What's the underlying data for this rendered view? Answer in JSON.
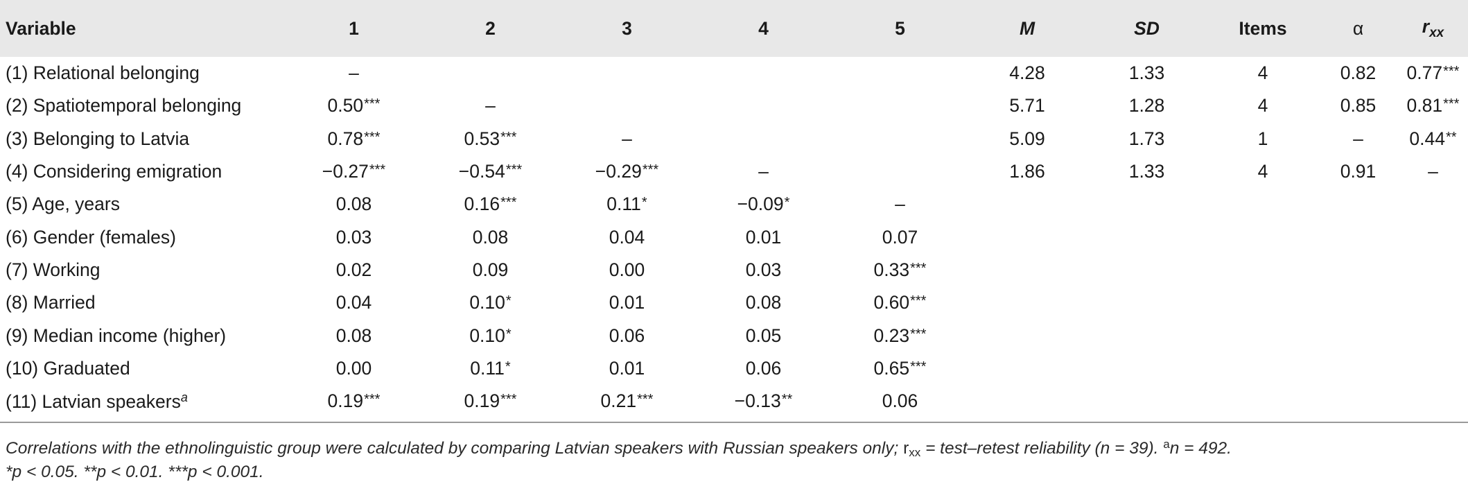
{
  "headers": {
    "variable": "Variable",
    "c1": "1",
    "c2": "2",
    "c3": "3",
    "c4": "4",
    "c5": "5",
    "m": "M",
    "sd": "SD",
    "items": "Items",
    "alpha": "α",
    "rxx_base": "r",
    "rxx_sub": "xx"
  },
  "rows": [
    {
      "label": "(1) Relational belonging",
      "sup": "",
      "c1": "–",
      "c1s": "",
      "c2": "",
      "c2s": "",
      "c3": "",
      "c3s": "",
      "c4": "",
      "c4s": "",
      "c5": "",
      "c5s": "",
      "m": "4.28",
      "sd": "1.33",
      "items": "4",
      "alpha": "0.82",
      "rxx": "0.77",
      "rxxs": "***"
    },
    {
      "label": "(2) Spatiotemporal belonging",
      "sup": "",
      "c1": "0.50",
      "c1s": "***",
      "c2": "–",
      "c2s": "",
      "c3": "",
      "c3s": "",
      "c4": "",
      "c4s": "",
      "c5": "",
      "c5s": "",
      "m": "5.71",
      "sd": "1.28",
      "items": "4",
      "alpha": "0.85",
      "rxx": "0.81",
      "rxxs": "***"
    },
    {
      "label": "(3) Belonging to Latvia",
      "sup": "",
      "c1": "0.78",
      "c1s": "***",
      "c2": "0.53",
      "c2s": "***",
      "c3": "–",
      "c3s": "",
      "c4": "",
      "c4s": "",
      "c5": "",
      "c5s": "",
      "m": "5.09",
      "sd": "1.73",
      "items": "1",
      "alpha": "–",
      "rxx": "0.44",
      "rxxs": "**"
    },
    {
      "label": "(4) Considering emigration",
      "sup": "",
      "c1": "−0.27",
      "c1s": "***",
      "c2": "−0.54",
      "c2s": "***",
      "c3": "−0.29",
      "c3s": "***",
      "c4": "–",
      "c4s": "",
      "c5": "",
      "c5s": "",
      "m": "1.86",
      "sd": "1.33",
      "items": "4",
      "alpha": "0.91",
      "rxx": "–",
      "rxxs": ""
    },
    {
      "label": "(5) Age, years",
      "sup": "",
      "c1": "0.08",
      "c1s": "",
      "c2": "0.16",
      "c2s": "***",
      "c3": "0.11",
      "c3s": "*",
      "c4": "−0.09",
      "c4s": "*",
      "c5": "–",
      "c5s": "",
      "m": "",
      "sd": "",
      "items": "",
      "alpha": "",
      "rxx": "",
      "rxxs": ""
    },
    {
      "label": "(6) Gender (females)",
      "sup": "",
      "c1": "0.03",
      "c1s": "",
      "c2": "0.08",
      "c2s": "",
      "c3": "0.04",
      "c3s": "",
      "c4": "0.01",
      "c4s": "",
      "c5": "0.07",
      "c5s": "",
      "m": "",
      "sd": "",
      "items": "",
      "alpha": "",
      "rxx": "",
      "rxxs": ""
    },
    {
      "label": "(7) Working",
      "sup": "",
      "c1": "0.02",
      "c1s": "",
      "c2": "0.09",
      "c2s": "",
      "c3": "0.00",
      "c3s": "",
      "c4": "0.03",
      "c4s": "",
      "c5": "0.33",
      "c5s": "***",
      "m": "",
      "sd": "",
      "items": "",
      "alpha": "",
      "rxx": "",
      "rxxs": ""
    },
    {
      "label": "(8) Married",
      "sup": "",
      "c1": "0.04",
      "c1s": "",
      "c2": "0.10",
      "c2s": "*",
      "c3": "0.01",
      "c3s": "",
      "c4": "0.08",
      "c4s": "",
      "c5": "0.60",
      "c5s": "***",
      "m": "",
      "sd": "",
      "items": "",
      "alpha": "",
      "rxx": "",
      "rxxs": ""
    },
    {
      "label": "(9) Median income (higher)",
      "sup": "",
      "c1": "0.08",
      "c1s": "",
      "c2": "0.10",
      "c2s": "*",
      "c3": "0.06",
      "c3s": "",
      "c4": "0.05",
      "c4s": "",
      "c5": "0.23",
      "c5s": "***",
      "m": "",
      "sd": "",
      "items": "",
      "alpha": "",
      "rxx": "",
      "rxxs": ""
    },
    {
      "label": "(10) Graduated",
      "sup": "",
      "c1": "0.00",
      "c1s": "",
      "c2": "0.11",
      "c2s": "*",
      "c3": "0.01",
      "c3s": "",
      "c4": "0.06",
      "c4s": "",
      "c5": "0.65",
      "c5s": "***",
      "m": "",
      "sd": "",
      "items": "",
      "alpha": "",
      "rxx": "",
      "rxxs": ""
    },
    {
      "label": "(11) Latvian speakers",
      "sup": "a",
      "c1": "0.19",
      "c1s": "***",
      "c2": "0.19",
      "c2s": "***",
      "c3": "0.21",
      "c3s": "***",
      "c4": "−0.13",
      "c4s": "**",
      "c5": "0.06",
      "c5s": "",
      "m": "",
      "sd": "",
      "items": "",
      "alpha": "",
      "rxx": "",
      "rxxs": ""
    }
  ],
  "note": {
    "part1": "Correlations with the ethnolinguistic group were calculated by comparing Latvian speakers with Russian speakers only; ",
    "r": "r",
    "xx": "xx",
    "part2": " = test–retest reliability (n = 39). ",
    "a_sup": "a",
    "part3": "n = 492.",
    "line2": "*p < 0.05. **p < 0.01. ***p < 0.001."
  }
}
